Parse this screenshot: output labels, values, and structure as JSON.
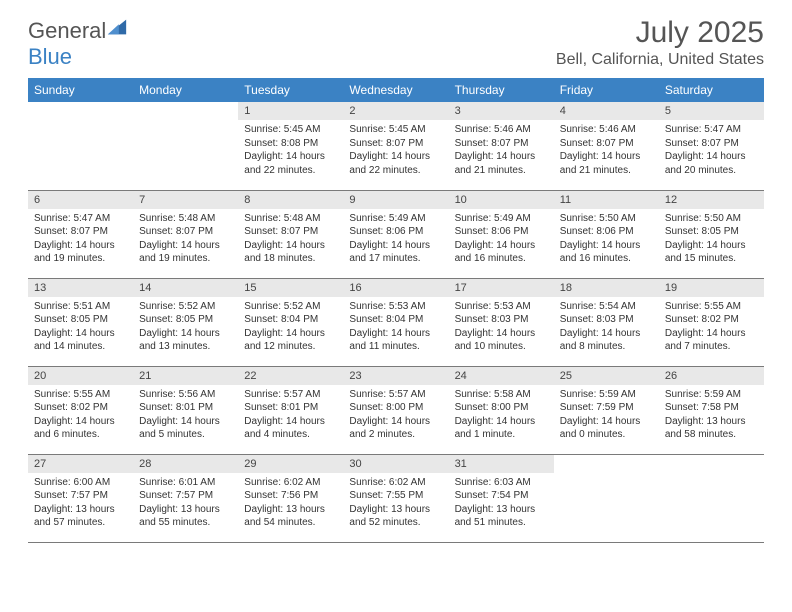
{
  "logo": {
    "name": "General",
    "accent": "Blue"
  },
  "colors": {
    "header_bg": "#3b82c4",
    "header_fg": "#ffffff",
    "daynum_bg": "#e8e8e8",
    "border": "#7a7a7a",
    "text": "#333333",
    "title": "#555555"
  },
  "typography": {
    "title_fontsize": 30,
    "location_fontsize": 16,
    "dayhead_fontsize": 12,
    "daynum_fontsize": 11,
    "body_fontsize": 10
  },
  "title": "July 2025",
  "location": "Bell, California, United States",
  "day_headers": [
    "Sunday",
    "Monday",
    "Tuesday",
    "Wednesday",
    "Thursday",
    "Friday",
    "Saturday"
  ],
  "weeks": [
    [
      null,
      null,
      {
        "n": "1",
        "sr": "5:45 AM",
        "ss": "8:08 PM",
        "dl": "14 hours and 22 minutes."
      },
      {
        "n": "2",
        "sr": "5:45 AM",
        "ss": "8:07 PM",
        "dl": "14 hours and 22 minutes."
      },
      {
        "n": "3",
        "sr": "5:46 AM",
        "ss": "8:07 PM",
        "dl": "14 hours and 21 minutes."
      },
      {
        "n": "4",
        "sr": "5:46 AM",
        "ss": "8:07 PM",
        "dl": "14 hours and 21 minutes."
      },
      {
        "n": "5",
        "sr": "5:47 AM",
        "ss": "8:07 PM",
        "dl": "14 hours and 20 minutes."
      }
    ],
    [
      {
        "n": "6",
        "sr": "5:47 AM",
        "ss": "8:07 PM",
        "dl": "14 hours and 19 minutes."
      },
      {
        "n": "7",
        "sr": "5:48 AM",
        "ss": "8:07 PM",
        "dl": "14 hours and 19 minutes."
      },
      {
        "n": "8",
        "sr": "5:48 AM",
        "ss": "8:07 PM",
        "dl": "14 hours and 18 minutes."
      },
      {
        "n": "9",
        "sr": "5:49 AM",
        "ss": "8:06 PM",
        "dl": "14 hours and 17 minutes."
      },
      {
        "n": "10",
        "sr": "5:49 AM",
        "ss": "8:06 PM",
        "dl": "14 hours and 16 minutes."
      },
      {
        "n": "11",
        "sr": "5:50 AM",
        "ss": "8:06 PM",
        "dl": "14 hours and 16 minutes."
      },
      {
        "n": "12",
        "sr": "5:50 AM",
        "ss": "8:05 PM",
        "dl": "14 hours and 15 minutes."
      }
    ],
    [
      {
        "n": "13",
        "sr": "5:51 AM",
        "ss": "8:05 PM",
        "dl": "14 hours and 14 minutes."
      },
      {
        "n": "14",
        "sr": "5:52 AM",
        "ss": "8:05 PM",
        "dl": "14 hours and 13 minutes."
      },
      {
        "n": "15",
        "sr": "5:52 AM",
        "ss": "8:04 PM",
        "dl": "14 hours and 12 minutes."
      },
      {
        "n": "16",
        "sr": "5:53 AM",
        "ss": "8:04 PM",
        "dl": "14 hours and 11 minutes."
      },
      {
        "n": "17",
        "sr": "5:53 AM",
        "ss": "8:03 PM",
        "dl": "14 hours and 10 minutes."
      },
      {
        "n": "18",
        "sr": "5:54 AM",
        "ss": "8:03 PM",
        "dl": "14 hours and 8 minutes."
      },
      {
        "n": "19",
        "sr": "5:55 AM",
        "ss": "8:02 PM",
        "dl": "14 hours and 7 minutes."
      }
    ],
    [
      {
        "n": "20",
        "sr": "5:55 AM",
        "ss": "8:02 PM",
        "dl": "14 hours and 6 minutes."
      },
      {
        "n": "21",
        "sr": "5:56 AM",
        "ss": "8:01 PM",
        "dl": "14 hours and 5 minutes."
      },
      {
        "n": "22",
        "sr": "5:57 AM",
        "ss": "8:01 PM",
        "dl": "14 hours and 4 minutes."
      },
      {
        "n": "23",
        "sr": "5:57 AM",
        "ss": "8:00 PM",
        "dl": "14 hours and 2 minutes."
      },
      {
        "n": "24",
        "sr": "5:58 AM",
        "ss": "8:00 PM",
        "dl": "14 hours and 1 minute."
      },
      {
        "n": "25",
        "sr": "5:59 AM",
        "ss": "7:59 PM",
        "dl": "14 hours and 0 minutes."
      },
      {
        "n": "26",
        "sr": "5:59 AM",
        "ss": "7:58 PM",
        "dl": "13 hours and 58 minutes."
      }
    ],
    [
      {
        "n": "27",
        "sr": "6:00 AM",
        "ss": "7:57 PM",
        "dl": "13 hours and 57 minutes."
      },
      {
        "n": "28",
        "sr": "6:01 AM",
        "ss": "7:57 PM",
        "dl": "13 hours and 55 minutes."
      },
      {
        "n": "29",
        "sr": "6:02 AM",
        "ss": "7:56 PM",
        "dl": "13 hours and 54 minutes."
      },
      {
        "n": "30",
        "sr": "6:02 AM",
        "ss": "7:55 PM",
        "dl": "13 hours and 52 minutes."
      },
      {
        "n": "31",
        "sr": "6:03 AM",
        "ss": "7:54 PM",
        "dl": "13 hours and 51 minutes."
      },
      null,
      null
    ]
  ],
  "labels": {
    "sunrise": "Sunrise:",
    "sunset": "Sunset:",
    "daylight": "Daylight:"
  }
}
